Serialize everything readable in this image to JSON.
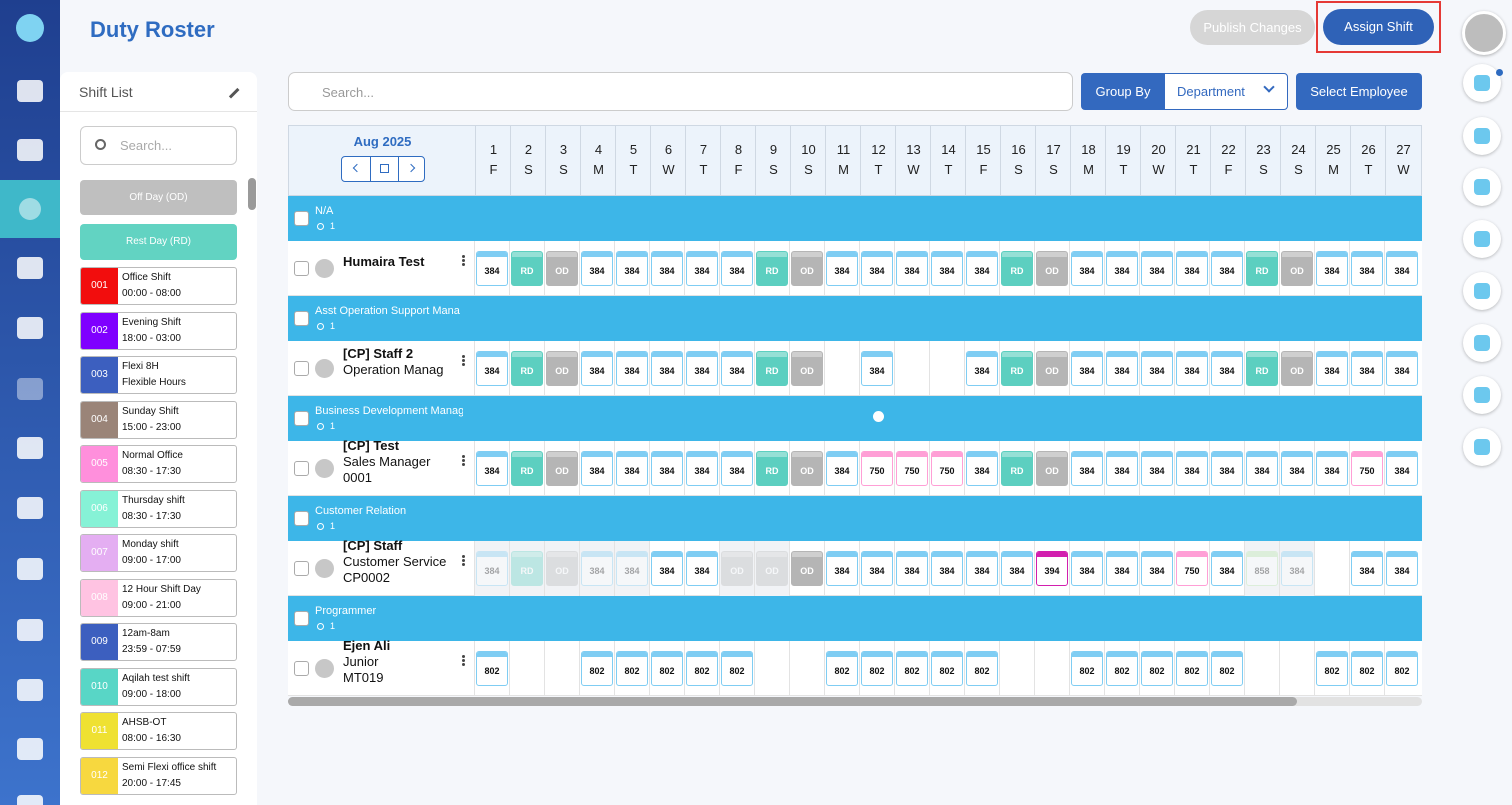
{
  "header": {
    "title": "Duty Roster",
    "publish_button": "Publish Changes",
    "assign_button": "Assign Shift"
  },
  "shift_list": {
    "title": "Shift List",
    "search_placeholder": "Search...",
    "off_day": "Off Day (OD)",
    "rest_day": "Rest Day (RD)",
    "shifts": [
      {
        "code": "001",
        "name": "Office Shift",
        "time": "00:00 - 08:00",
        "color": "#f20d0d"
      },
      {
        "code": "002",
        "name": "Evening Shift",
        "time": "18:00 - 03:00",
        "color": "#7f00ff"
      },
      {
        "code": "003",
        "name": "Flexi 8H",
        "time": "Flexible Hours",
        "color": "#3c5fbf"
      },
      {
        "code": "004",
        "name": "Sunday Shift",
        "time": "15:00 - 23:00",
        "color": "#9a8478"
      },
      {
        "code": "005",
        "name": "Normal Office",
        "time": "08:30 - 17:30",
        "color": "#ff8fdc"
      },
      {
        "code": "006",
        "name": "Thursday shift",
        "time": "08:30 - 17:30",
        "color": "#86f2d6"
      },
      {
        "code": "007",
        "name": "Monday shift",
        "time": "09:00 - 17:00",
        "color": "#e4aef2"
      },
      {
        "code": "008",
        "name": "12 Hour Shift Day",
        "time": "09:00 - 21:00",
        "color": "#ffc3e2"
      },
      {
        "code": "009",
        "name": "12am-8am",
        "time": "23:59 - 07:59",
        "color": "#3c5fbf"
      },
      {
        "code": "010",
        "name": "Aqilah test shift",
        "time": "09:00 - 18:00",
        "color": "#58d6c6"
      },
      {
        "code": "011",
        "name": "AHSB-OT",
        "time": "08:00 - 16:30",
        "color": "#efe132"
      },
      {
        "code": "012",
        "name": "Semi Flexi office shift",
        "time": "20:00 - 17:45",
        "color": "#f7d83f"
      }
    ]
  },
  "toolbar": {
    "search_placeholder": "Search...",
    "group_by": "Group By",
    "group_value": "Department",
    "select_employee": "Select Employee"
  },
  "roster": {
    "month": "Aug 2025",
    "default_color": "#7fcdf3",
    "cell_colors": {
      "RD": "#5ccfc0",
      "OD": "#b5b5b5",
      "750": "#ff9fd6",
      "394": "#d21fae",
      "858": "#b8e6a8"
    },
    "filled_codes": [
      "RD",
      "OD"
    ],
    "days": [
      {
        "day": 1,
        "weekday": "F"
      },
      {
        "day": 2,
        "weekday": "S"
      },
      {
        "day": 3,
        "weekday": "S"
      },
      {
        "day": 4,
        "weekday": "M"
      },
      {
        "day": 5,
        "weekday": "T"
      },
      {
        "day": 6,
        "weekday": "W"
      },
      {
        "day": 7,
        "weekday": "T"
      },
      {
        "day": 8,
        "weekday": "F"
      },
      {
        "day": 9,
        "weekday": "S"
      },
      {
        "day": 10,
        "weekday": "S"
      },
      {
        "day": 11,
        "weekday": "M"
      },
      {
        "day": 12,
        "weekday": "T"
      },
      {
        "day": 13,
        "weekday": "W"
      },
      {
        "day": 14,
        "weekday": "T"
      },
      {
        "day": 15,
        "weekday": "F"
      },
      {
        "day": 16,
        "weekday": "S"
      },
      {
        "day": 17,
        "weekday": "S"
      },
      {
        "day": 18,
        "weekday": "M"
      },
      {
        "day": 19,
        "weekday": "T"
      },
      {
        "day": 20,
        "weekday": "W"
      },
      {
        "day": 21,
        "weekday": "T"
      },
      {
        "day": 22,
        "weekday": "F"
      },
      {
        "day": 23,
        "weekday": "S"
      },
      {
        "day": 24,
        "weekday": "S"
      },
      {
        "day": 25,
        "weekday": "M"
      },
      {
        "day": 26,
        "weekday": "T"
      },
      {
        "day": 27,
        "weekday": "W"
      }
    ],
    "groups": [
      {
        "name": "N/A",
        "count": 1,
        "employees": [
          {
            "lines": [
              "Humaira Test"
            ],
            "faded_days": [],
            "cells": [
              "384",
              "RD",
              "OD",
              "384",
              "384",
              "384",
              "384",
              "384",
              "RD",
              "OD",
              "384",
              "384",
              "384",
              "384",
              "384",
              "RD",
              "OD",
              "384",
              "384",
              "384",
              "384",
              "384",
              "RD",
              "OD",
              "384",
              "384",
              "384"
            ]
          }
        ]
      },
      {
        "name": "Asst Operation Support Mana",
        "count": 1,
        "employees": [
          {
            "lines": [
              "[CP] Staff 2",
              "Operation Manag"
            ],
            "faded_days": [],
            "cells": [
              "384",
              "RD",
              "OD",
              "384",
              "384",
              "384",
              "384",
              "384",
              "RD",
              "OD",
              null,
              "384",
              null,
              null,
              "384",
              "RD",
              "OD",
              "384",
              "384",
              "384",
              "384",
              "384",
              "RD",
              "OD",
              "384",
              "384",
              "384"
            ]
          }
        ]
      },
      {
        "name": "Business Development Manag",
        "count": 1,
        "employees": [
          {
            "lines": [
              "[CP] Test",
              "Sales Manager",
              "0001"
            ],
            "faded_days": [],
            "cells": [
              "384",
              "RD",
              "OD",
              "384",
              "384",
              "384",
              "384",
              "384",
              "RD",
              "OD",
              "384",
              "750",
              "750",
              "750",
              "384",
              "RD",
              "OD",
              "384",
              "384",
              "384",
              "384",
              "384",
              "384",
              "384",
              "384",
              "750",
              "384"
            ]
          }
        ]
      },
      {
        "name": "Customer Relation",
        "count": 1,
        "employees": [
          {
            "lines": [
              "[CP] Staff",
              "Customer Service",
              "CP0002"
            ],
            "faded_days": [
              0,
              1,
              2,
              3,
              4,
              7,
              8,
              22,
              23
            ],
            "cells": [
              "384",
              "RD",
              "OD",
              "384",
              "384",
              "384",
              "384",
              "OD",
              "OD",
              "OD",
              "384",
              "384",
              "384",
              "384",
              "384",
              "384",
              "394",
              "384",
              "384",
              "384",
              "750",
              "384",
              "858",
              "384",
              null,
              "384",
              "384"
            ]
          }
        ]
      },
      {
        "name": "Programmer",
        "count": 1,
        "employees": [
          {
            "lines": [
              "Ejen Ali",
              "Junior",
              "MT019"
            ],
            "faded_days": [],
            "cells": [
              "802",
              null,
              null,
              "802",
              "802",
              "802",
              "802",
              "802",
              null,
              null,
              "802",
              "802",
              "802",
              "802",
              "802",
              null,
              null,
              "802",
              "802",
              "802",
              "802",
              "802",
              null,
              null,
              "802",
              "802",
              "802"
            ]
          }
        ]
      }
    ]
  }
}
